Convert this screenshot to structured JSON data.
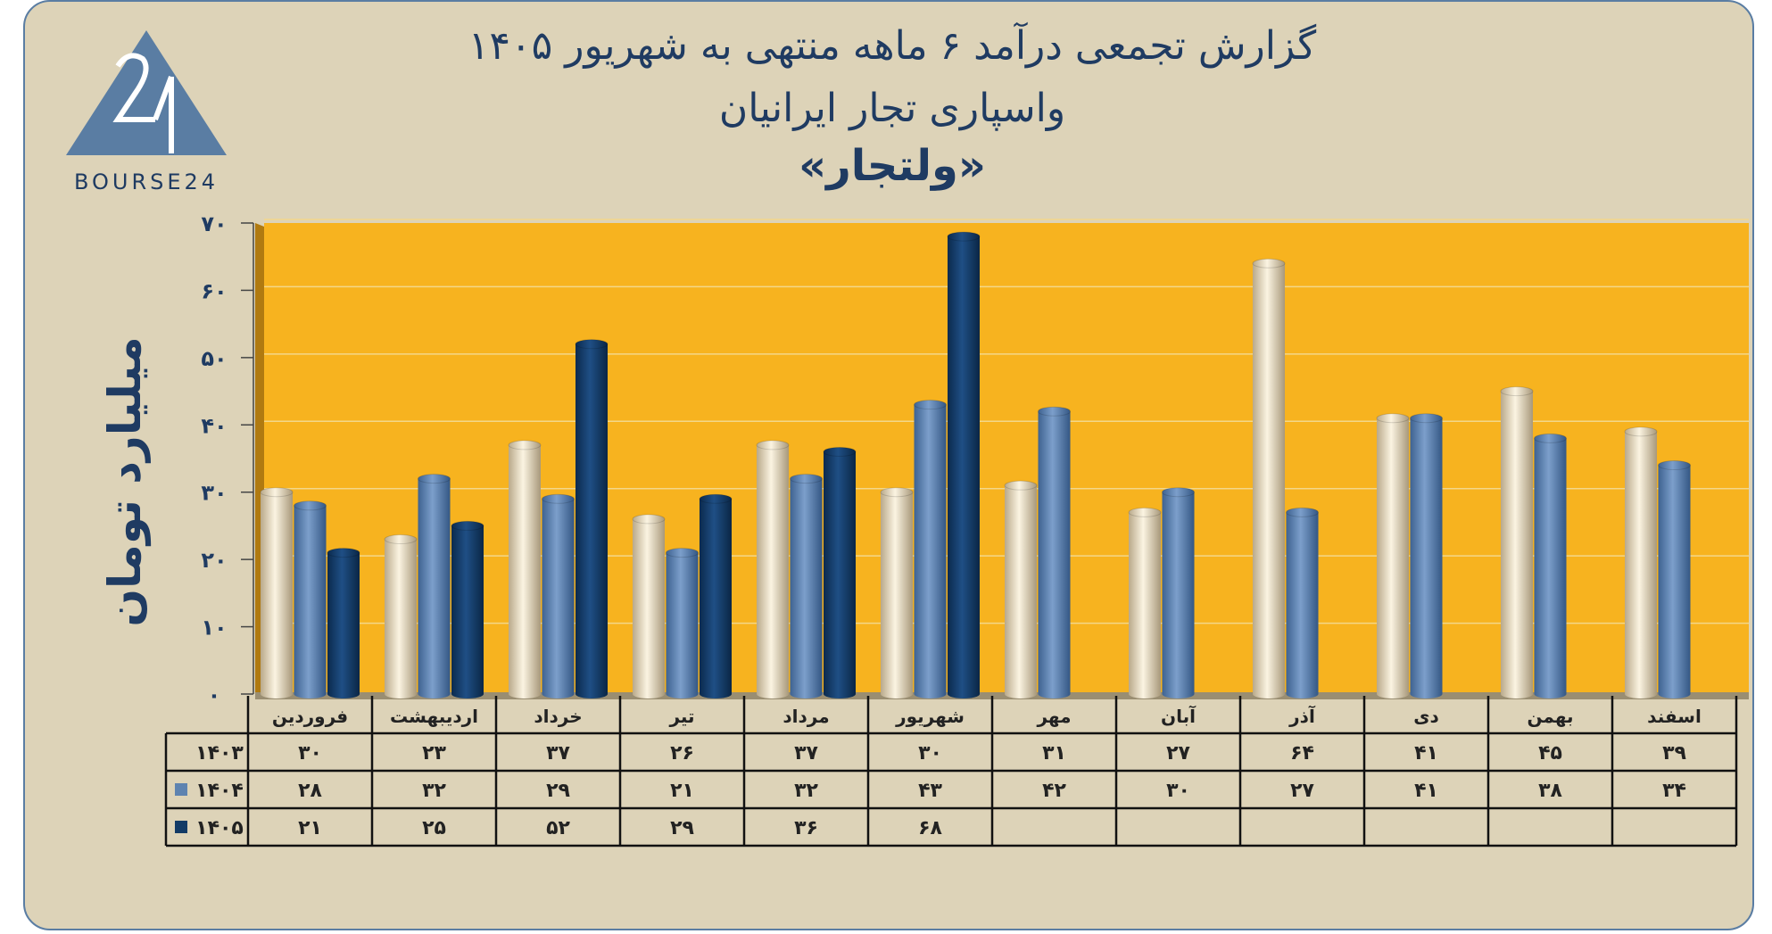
{
  "header": {
    "title_line1": "گزارش تجمعی درآمد ۶ ماهه منتهی به شهریور ۱۴۰۵",
    "title_line2": "واسپاری تجار ایرانیان",
    "title_line3": "«ولتجار»",
    "logo_text": "BOURSE24"
  },
  "colors": {
    "panel": "#ddd3b8",
    "plot_bg": "#f7b31f",
    "series_1403": "#e8dcc0",
    "series_1404": "#5e83b0",
    "series_1405": "#123a66",
    "text": "#1f3b62"
  },
  "chart_data": {
    "type": "bar",
    "ylabel": "میلیارد تومان",
    "ylim": [
      0,
      70
    ],
    "yticks": [
      "۰",
      "۱۰",
      "۲۰",
      "۳۰",
      "۴۰",
      "۵۰",
      "۶۰",
      "۷۰"
    ],
    "categories": [
      "فروردین",
      "اردیبهشت",
      "خرداد",
      "تیر",
      "مرداد",
      "شهریور",
      "مهر",
      "آبان",
      "آذر",
      "دی",
      "بهمن",
      "اسفند"
    ],
    "series": [
      {
        "name": "۱۴۰۳",
        "values": [
          30,
          23,
          37,
          26,
          37,
          30,
          31,
          27,
          64,
          41,
          45,
          39
        ],
        "labels": [
          "۳۰",
          "۲۳",
          "۳۷",
          "۲۶",
          "۳۷",
          "۳۰",
          "۳۱",
          "۲۷",
          "۶۴",
          "۴۱",
          "۴۵",
          "۳۹"
        ]
      },
      {
        "name": "۱۴۰۴",
        "values": [
          28,
          32,
          29,
          21,
          32,
          43,
          42,
          30,
          27,
          41,
          38,
          34
        ],
        "labels": [
          "۲۸",
          "۳۲",
          "۲۹",
          "۲۱",
          "۳۲",
          "۴۳",
          "۴۲",
          "۳۰",
          "۲۷",
          "۴۱",
          "۳۸",
          "۳۴"
        ]
      },
      {
        "name": "۱۴۰۵",
        "values": [
          21,
          25,
          52,
          29,
          36,
          68,
          null,
          null,
          null,
          null,
          null,
          null
        ],
        "labels": [
          "۲۱",
          "۲۵",
          "۵۲",
          "۲۹",
          "۳۶",
          "۶۸",
          "",
          "",
          "",
          "",
          "",
          ""
        ]
      }
    ],
    "grid": true,
    "legend": "data-table-left"
  }
}
